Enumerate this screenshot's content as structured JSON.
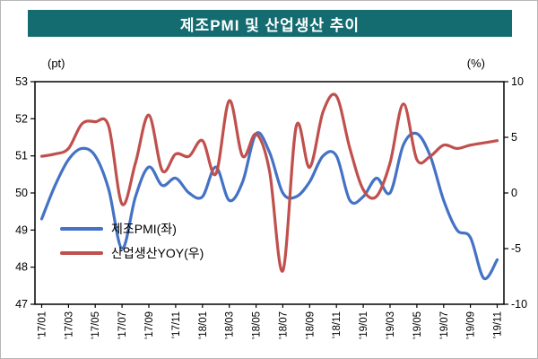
{
  "title": "제조PMI 및 산업생산 추이",
  "left_unit": "(pt)",
  "right_unit": "(%)",
  "colors": {
    "title_bg": "#156C70",
    "title_text": "#FFFFFF",
    "axis": "#000000",
    "pmi_line": "#4472C4",
    "yoy_line": "#C0504D"
  },
  "chart_data": {
    "type": "line",
    "title": "제조PMI 및 산업생산 추이",
    "grid": false,
    "legend_position": "inside-left",
    "tick_every": 2,
    "categories": [
      "'17/01",
      "'17/02",
      "'17/03",
      "'17/04",
      "'17/05",
      "'17/06",
      "'17/07",
      "'17/08",
      "'17/09",
      "'17/10",
      "'17/11",
      "'17/12",
      "'18/01",
      "'18/02",
      "'18/03",
      "'18/04",
      "'18/05",
      "'18/06",
      "'18/07",
      "'18/08",
      "'18/09",
      "'18/10",
      "'18/11",
      "'18/12",
      "'19/01",
      "'19/02",
      "'19/03",
      "'19/04",
      "'19/05",
      "'19/06",
      "'19/07",
      "'19/08",
      "'19/09",
      "'19/10",
      "'19/11"
    ],
    "y_left": {
      "min": 47,
      "max": 53,
      "step": 1,
      "unit": "(pt)"
    },
    "y_right": {
      "min": -10,
      "max": 10,
      "step": 5,
      "unit": "(%)"
    },
    "series": [
      {
        "name": "제조PMI(좌)",
        "axis": "left",
        "color": "#4472C4",
        "smooth": true,
        "values": [
          49.3,
          50.2,
          50.9,
          51.2,
          51.0,
          50.1,
          48.5,
          49.9,
          50.7,
          50.2,
          50.4,
          50.0,
          49.9,
          50.7,
          49.8,
          50.3,
          51.6,
          51.1,
          50.0,
          49.9,
          50.3,
          51.0,
          51.0,
          49.8,
          49.9,
          50.4,
          50.0,
          51.3,
          51.6,
          51.0,
          49.8,
          49.0,
          48.8,
          47.7,
          48.2
        ]
      },
      {
        "name": "산업생산YOY(우)",
        "axis": "right",
        "color": "#C0504D",
        "smooth": true,
        "values": [
          3.3,
          3.5,
          4.0,
          6.2,
          6.4,
          6.0,
          -1.0,
          2.7,
          7.0,
          2.0,
          3.5,
          3.3,
          4.7,
          1.7,
          8.3,
          3.3,
          5.3,
          2.0,
          -7.0,
          6.0,
          2.3,
          7.3,
          8.7,
          4.0,
          0.3,
          -0.3,
          2.7,
          8.0,
          3.0,
          3.3,
          4.3,
          4.0,
          4.3,
          4.5,
          4.7
        ]
      }
    ]
  }
}
